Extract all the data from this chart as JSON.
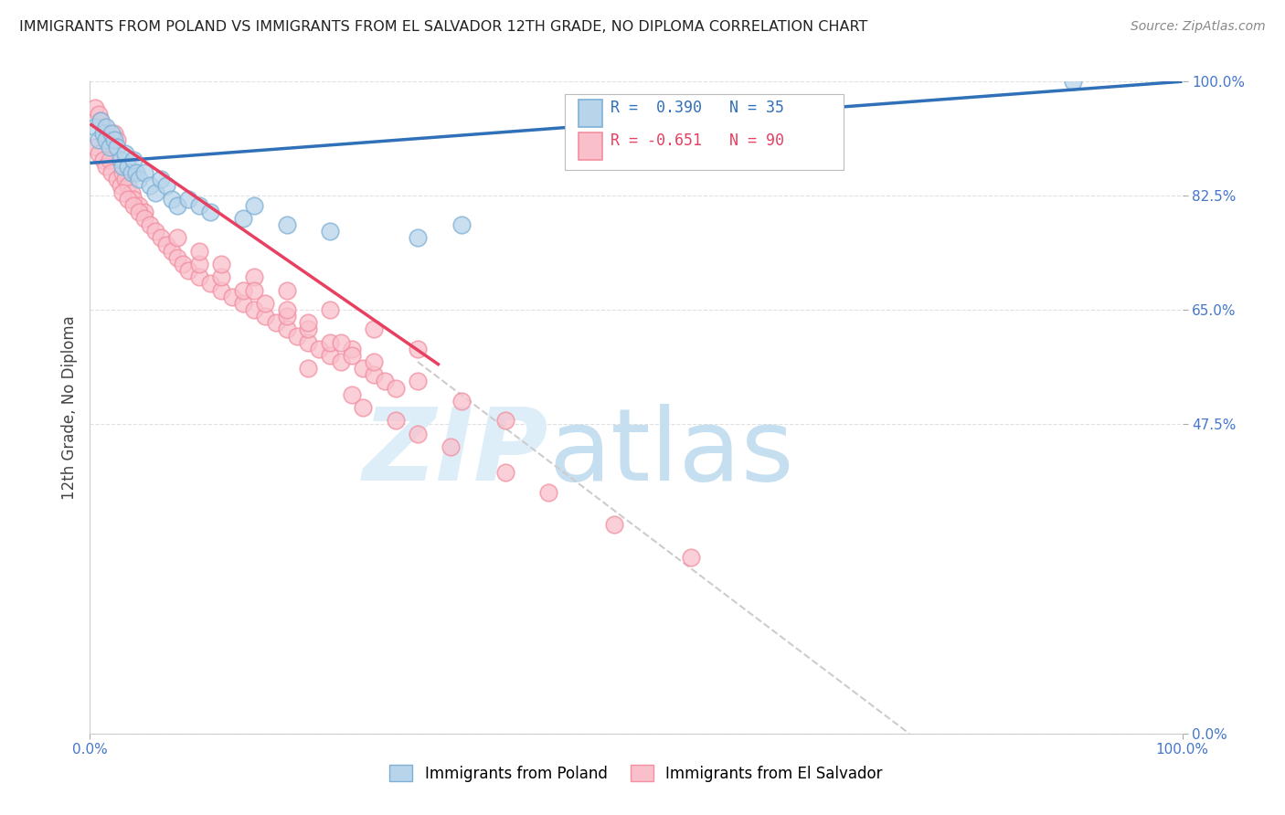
{
  "title": "IMMIGRANTS FROM POLAND VS IMMIGRANTS FROM EL SALVADOR 12TH GRADE, NO DIPLOMA CORRELATION CHART",
  "source": "Source: ZipAtlas.com",
  "ylabel": "12th Grade, No Diploma",
  "xlim": [
    0.0,
    1.0
  ],
  "ylim": [
    0.0,
    1.0
  ],
  "xtick_labels": [
    "0.0%",
    "100.0%"
  ],
  "ytick_labels": [
    "100.0%",
    "82.5%",
    "65.0%",
    "47.5%",
    "0.0%"
  ],
  "ytick_positions": [
    1.0,
    0.825,
    0.65,
    0.475,
    0.0
  ],
  "grid_color": "#e0e0e0",
  "background_color": "#ffffff",
  "poland_color": "#7eb0d5",
  "poland_color_fill": "#b8d4ea",
  "salvador_color": "#f28fa0",
  "salvador_color_fill": "#f9c0cc",
  "trend_poland_color": "#3070b8",
  "trend_salvador_color": "#e84060",
  "trend_dashed_color": "#cccccc",
  "label_color": "#4477cc",
  "poland_x": [
    0.005,
    0.008,
    0.01,
    0.012,
    0.015,
    0.015,
    0.018,
    0.02,
    0.022,
    0.025,
    0.028,
    0.03,
    0.032,
    0.035,
    0.038,
    0.04,
    0.042,
    0.045,
    0.05,
    0.055,
    0.06,
    0.065,
    0.07,
    0.075,
    0.08,
    0.09,
    0.1,
    0.11,
    0.14,
    0.15,
    0.18,
    0.22,
    0.3,
    0.34,
    0.9
  ],
  "poland_y": [
    0.93,
    0.91,
    0.94,
    0.92,
    0.93,
    0.91,
    0.9,
    0.92,
    0.91,
    0.9,
    0.88,
    0.87,
    0.89,
    0.87,
    0.86,
    0.88,
    0.86,
    0.85,
    0.86,
    0.84,
    0.83,
    0.85,
    0.84,
    0.82,
    0.81,
    0.82,
    0.81,
    0.8,
    0.79,
    0.81,
    0.78,
    0.77,
    0.76,
    0.78,
    1.0
  ],
  "salvador_x": [
    0.005,
    0.008,
    0.01,
    0.012,
    0.015,
    0.018,
    0.02,
    0.022,
    0.025,
    0.005,
    0.008,
    0.012,
    0.015,
    0.018,
    0.02,
    0.025,
    0.028,
    0.03,
    0.032,
    0.035,
    0.038,
    0.04,
    0.045,
    0.05,
    0.03,
    0.035,
    0.04,
    0.045,
    0.05,
    0.055,
    0.06,
    0.065,
    0.07,
    0.075,
    0.08,
    0.085,
    0.09,
    0.1,
    0.11,
    0.12,
    0.13,
    0.14,
    0.15,
    0.16,
    0.17,
    0.18,
    0.19,
    0.2,
    0.21,
    0.22,
    0.23,
    0.24,
    0.25,
    0.26,
    0.27,
    0.28,
    0.1,
    0.12,
    0.14,
    0.16,
    0.18,
    0.2,
    0.22,
    0.24,
    0.08,
    0.1,
    0.12,
    0.15,
    0.18,
    0.22,
    0.26,
    0.3,
    0.15,
    0.18,
    0.2,
    0.23,
    0.26,
    0.3,
    0.34,
    0.38,
    0.2,
    0.24,
    0.28,
    0.33,
    0.38,
    0.42,
    0.48,
    0.55,
    0.25,
    0.3
  ],
  "salvador_y": [
    0.96,
    0.95,
    0.94,
    0.93,
    0.92,
    0.91,
    0.9,
    0.92,
    0.91,
    0.9,
    0.89,
    0.88,
    0.87,
    0.88,
    0.86,
    0.85,
    0.84,
    0.86,
    0.85,
    0.84,
    0.83,
    0.82,
    0.81,
    0.8,
    0.83,
    0.82,
    0.81,
    0.8,
    0.79,
    0.78,
    0.77,
    0.76,
    0.75,
    0.74,
    0.73,
    0.72,
    0.71,
    0.7,
    0.69,
    0.68,
    0.67,
    0.66,
    0.65,
    0.64,
    0.63,
    0.62,
    0.61,
    0.6,
    0.59,
    0.58,
    0.57,
    0.59,
    0.56,
    0.55,
    0.54,
    0.53,
    0.72,
    0.7,
    0.68,
    0.66,
    0.64,
    0.62,
    0.6,
    0.58,
    0.76,
    0.74,
    0.72,
    0.7,
    0.68,
    0.65,
    0.62,
    0.59,
    0.68,
    0.65,
    0.63,
    0.6,
    0.57,
    0.54,
    0.51,
    0.48,
    0.56,
    0.52,
    0.48,
    0.44,
    0.4,
    0.37,
    0.32,
    0.27,
    0.5,
    0.46
  ],
  "poland_trend": [
    0.0,
    1.0,
    0.875,
    1.0
  ],
  "salvador_trend_solid": [
    0.0,
    0.32,
    0.935,
    0.565
  ],
  "salvador_trend_dashed": [
    0.3,
    0.75,
    0.57,
    0.0
  ]
}
